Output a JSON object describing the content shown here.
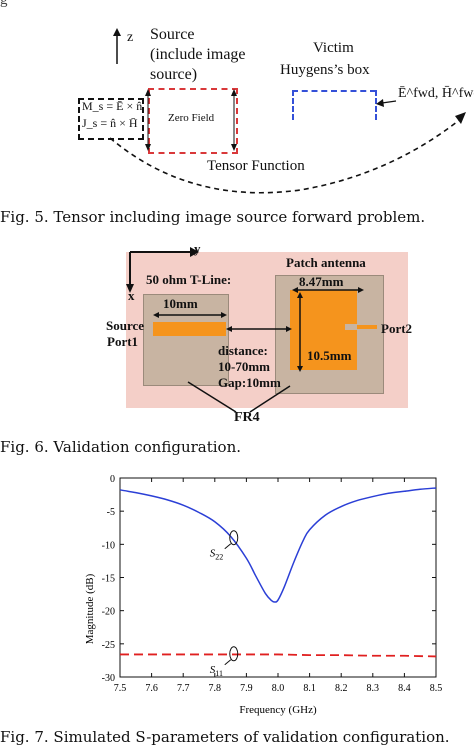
{
  "fig_top_cut": "g",
  "fig5": {
    "z_label": "z",
    "source_line1": "Source",
    "source_line2": "(include image",
    "source_line3": "source)",
    "victim": "Victim",
    "huygens": "Huygens’s box",
    "zero_field": "Zero Field",
    "ms_eq": "M_s = Ē × n̂",
    "js_eq": "J_s = n̂ × H̄",
    "efwd": "Ē^fwd, H̄^fwd",
    "tensor_function": "Tensor Function",
    "caption": "Fig. 5. Tensor including image source forward problem."
  },
  "fig6": {
    "y_axis": "y",
    "x_axis": "x",
    "tline": "50 ohm T-Line:",
    "patch_antenna": "Patch antenna",
    "dim_847": "8.47mm",
    "dim_10mm": "10mm",
    "source_port_l1": "Source",
    "source_port_l2": "Port1",
    "port2": "Port2",
    "distance_l1": "distance:",
    "distance_l2": "10-70mm",
    "distance_l3": "Gap:10mm",
    "dim_105": "10.5mm",
    "fr4": "FR4",
    "caption": "Fig. 6. Validation configuration."
  },
  "fig7": {
    "caption": "Fig. 7. Simulated S-parameters of validation configuration."
  },
  "chart_data": {
    "type": "line",
    "xlabel": "Frequency (GHz)",
    "ylabel": "Magnitude (dB)",
    "xlim": [
      7.5,
      8.5
    ],
    "ylim": [
      -30,
      0
    ],
    "xticks": [
      "7.5",
      "7.6",
      "7.7",
      "7.8",
      "7.9",
      "8.0",
      "8.1",
      "8.2",
      "8.3",
      "8.4",
      "8.5"
    ],
    "yticks": [
      "0",
      "-5",
      "-10",
      "-15",
      "-20",
      "-25",
      "-30"
    ],
    "grid": false,
    "annotations": [
      {
        "text": "S22",
        "base": "S",
        "sub": "22",
        "at_x": 7.86,
        "at_y": -9.0
      },
      {
        "text": "S11",
        "base": "S",
        "sub": "11",
        "at_x": 7.86,
        "at_y": -26.5
      }
    ],
    "series": [
      {
        "color": "#2b3fd6",
        "style": "solid",
        "x": [
          7.5,
          7.55,
          7.6,
          7.65,
          7.7,
          7.75,
          7.8,
          7.85,
          7.9,
          7.93,
          7.96,
          7.98,
          7.99,
          8.0,
          8.02,
          8.05,
          8.08,
          8.1,
          8.15,
          8.2,
          8.25,
          8.3,
          8.35,
          8.4,
          8.45,
          8.5
        ],
        "values": [
          -1.8,
          -2.2,
          -2.7,
          -3.3,
          -4.1,
          -5.2,
          -6.6,
          -8.8,
          -12.1,
          -14.8,
          -17.4,
          -18.5,
          -18.7,
          -18.4,
          -16.4,
          -12.7,
          -9.4,
          -7.8,
          -5.6,
          -4.3,
          -3.4,
          -2.8,
          -2.3,
          -2.0,
          -1.7,
          -1.5
        ]
      },
      {
        "color": "#e02020",
        "style": "dashed",
        "x": [
          7.5,
          7.6,
          7.7,
          7.8,
          7.9,
          8.0,
          8.1,
          8.2,
          8.3,
          8.4,
          8.5
        ],
        "values": [
          -26.6,
          -26.6,
          -26.6,
          -26.6,
          -26.6,
          -26.6,
          -26.7,
          -26.7,
          -26.8,
          -26.8,
          -26.9
        ]
      }
    ]
  }
}
